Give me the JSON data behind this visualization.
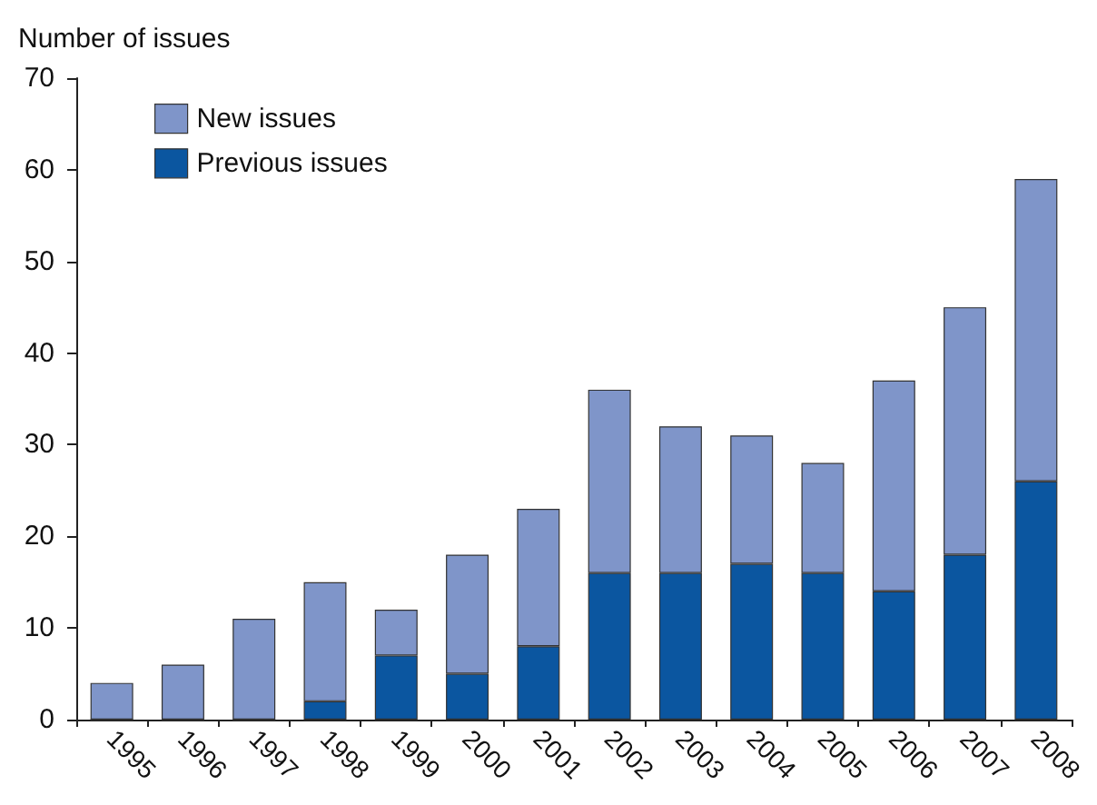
{
  "chart_data": {
    "type": "bar",
    "stacked": true,
    "ylabel": "Number of issues",
    "categories": [
      "1995",
      "1996",
      "1997",
      "1998",
      "1999",
      "2000",
      "2001",
      "2002",
      "2003",
      "2004",
      "2005",
      "2006",
      "2007",
      "2008"
    ],
    "series": [
      {
        "name": "Previous issues",
        "color": "#0b56a0",
        "values": [
          0,
          0,
          0,
          2,
          7,
          5,
          8,
          16,
          16,
          17,
          16,
          14,
          18,
          26
        ]
      },
      {
        "name": "New issues",
        "color": "#7f95c9",
        "values": [
          4,
          6,
          11,
          13,
          5,
          13,
          15,
          20,
          16,
          14,
          12,
          23,
          27,
          33
        ]
      }
    ],
    "ylim": [
      0,
      70
    ],
    "yticks": [
      0,
      10,
      20,
      30,
      40,
      50,
      60,
      70
    ],
    "grid": false,
    "legend": "top left"
  }
}
